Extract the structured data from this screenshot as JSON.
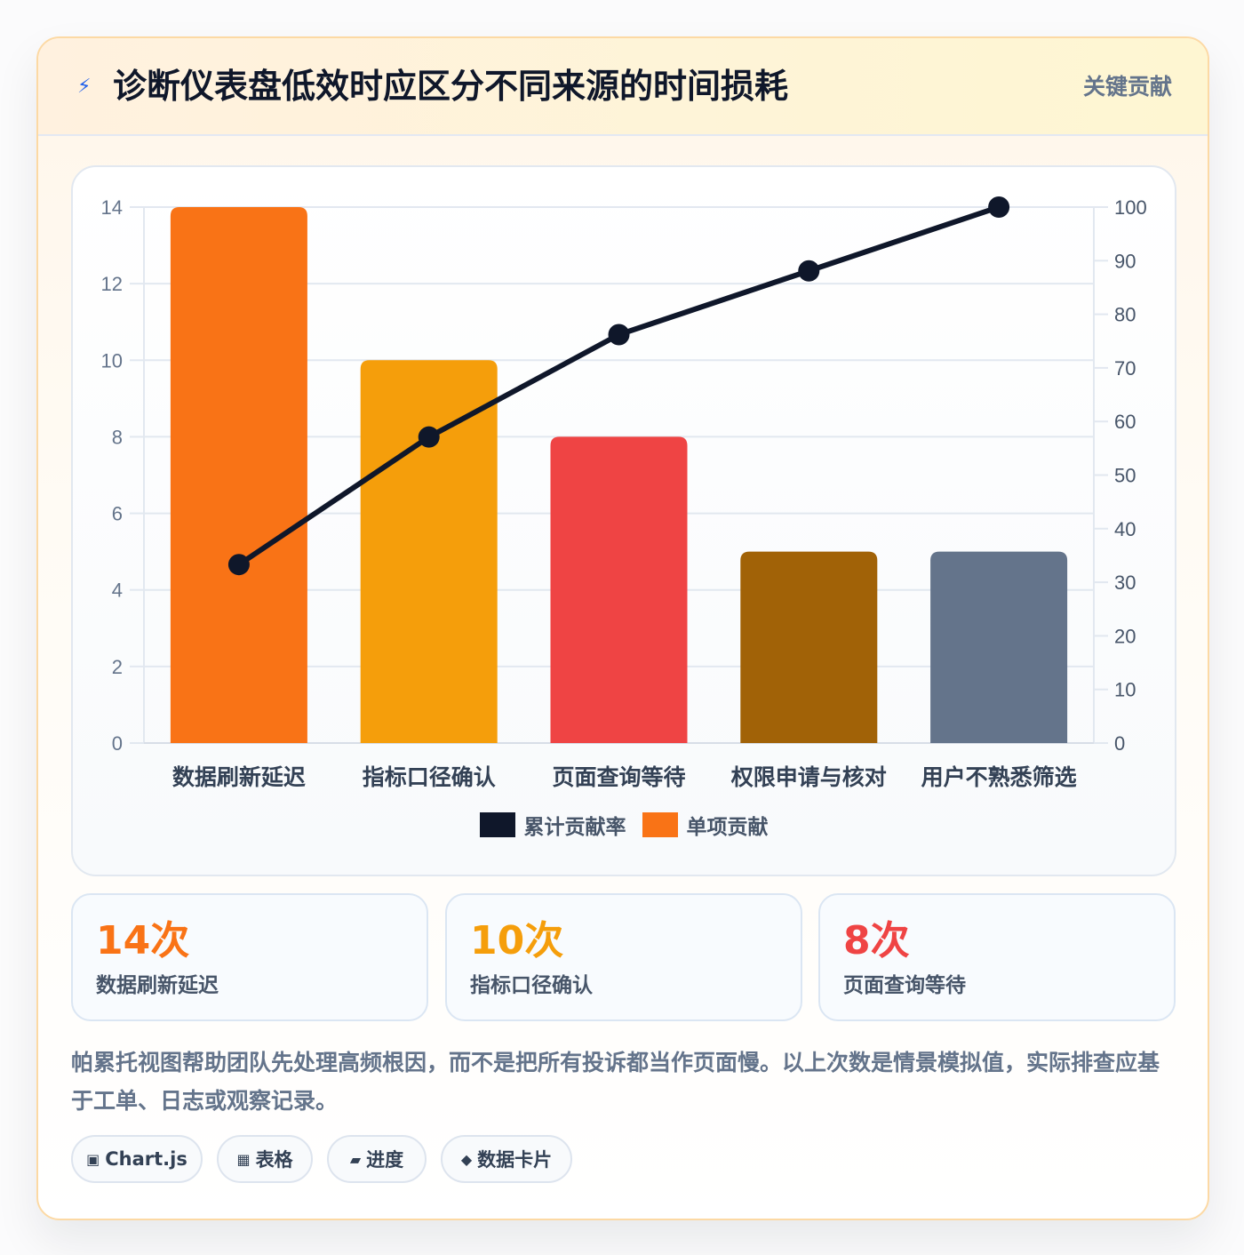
{
  "header": {
    "icon": "lightning-icon",
    "title": "诊断仪表盘低效时应区分不同来源的时间损耗",
    "badge": "关键贡献"
  },
  "chart_data": {
    "type": "bar",
    "categories": [
      "数据刷新延迟",
      "指标口径确认",
      "页面查询等待",
      "权限申请与核对",
      "用户不熟悉筛选"
    ],
    "series": [
      {
        "name": "单项贡献",
        "type": "bar",
        "values": [
          14,
          10,
          8,
          5,
          5
        ],
        "colors": [
          "#f97316",
          "#f59e0b",
          "#ef4444",
          "#a16207",
          "#64748b"
        ],
        "axis": "left"
      },
      {
        "name": "累计贡献率",
        "type": "line",
        "values": [
          33.3,
          57.1,
          76.2,
          88.1,
          100
        ],
        "color": "#0f172a",
        "axis": "right"
      }
    ],
    "y_left": {
      "min": 0,
      "max": 14,
      "ticks": [
        "0",
        "2",
        "4",
        "6",
        "8",
        "10",
        "12",
        "14"
      ]
    },
    "y_right": {
      "min": 0,
      "max": 100,
      "ticks": [
        "0",
        "10",
        "20",
        "30",
        "40",
        "50",
        "60",
        "70",
        "80",
        "90",
        "100"
      ]
    },
    "grid": true,
    "legend": {
      "position": "bottom",
      "items": [
        {
          "label": "累计贡献率",
          "color": "#0f172a"
        },
        {
          "label": "单项贡献",
          "color": "#f97316"
        }
      ]
    }
  },
  "stats": [
    {
      "value": "14次",
      "label": "数据刷新延迟",
      "color": "#f97316"
    },
    {
      "value": "10次",
      "label": "指标口径确认",
      "color": "#f59e0b"
    },
    {
      "value": "8次",
      "label": "页面查询等待",
      "color": "#ef4444"
    }
  ],
  "note": "帕累托视图帮助团队先处理高频根因，而不是把所有投诉都当作页面慢。以上次数是情景模拟值，实际排查应基于工单、日志或观察记录。",
  "tags": [
    {
      "icon": "chart-icon",
      "glyph": "▣",
      "label": "Chart.js"
    },
    {
      "icon": "table-icon",
      "glyph": "▦",
      "label": "表格"
    },
    {
      "icon": "progress-icon",
      "glyph": "▰",
      "label": "进度"
    },
    {
      "icon": "data-card-icon",
      "glyph": "◆",
      "label": "数据卡片"
    }
  ]
}
